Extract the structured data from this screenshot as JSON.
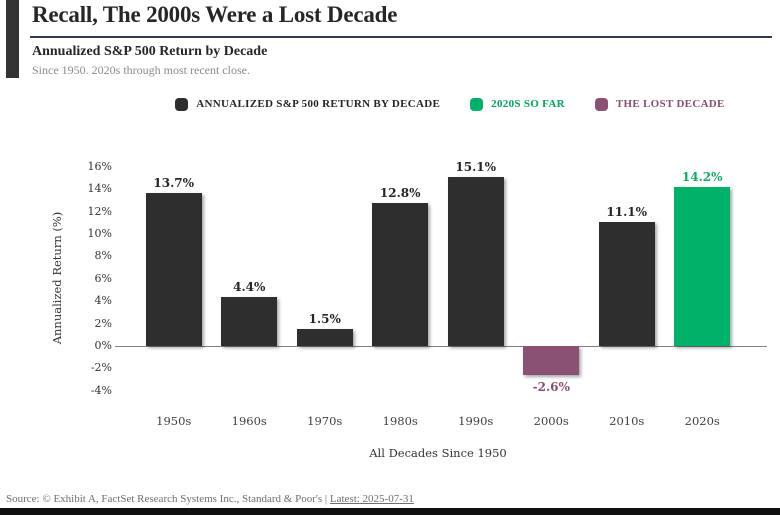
{
  "header": {
    "title": "Recall, The 2000s Were a Lost Decade",
    "subtitle": "Annualized S&P 500 Return by Decade",
    "tagline": "Since 1950. 2020s through most recent close."
  },
  "legend": [
    {
      "label": "ANNUALIZED S&P 500 RETURN BY DECADE",
      "marker_color": "#2e2e2e",
      "text_color": "#262626"
    },
    {
      "label": "2020S SO FAR",
      "marker_color": "#00b169",
      "text_color": "#00a35f"
    },
    {
      "label": "THE LOST DECADE",
      "marker_color": "#8b5173",
      "text_color": "#8a4d6f"
    }
  ],
  "chart_data": {
    "type": "bar",
    "categories": [
      "1950s",
      "1960s",
      "1970s",
      "1980s",
      "1990s",
      "2000s",
      "2010s",
      "2020s"
    ],
    "values": [
      13.7,
      4.4,
      1.5,
      12.8,
      15.1,
      -2.6,
      11.1,
      14.2
    ],
    "value_labels": [
      "13.7%",
      "4.4%",
      "1.5%",
      "12.8%",
      "15.1%",
      "-2.6%",
      "11.1%",
      "14.2%"
    ],
    "bar_colors": [
      "#2e2e2e",
      "#2e2e2e",
      "#2e2e2e",
      "#2e2e2e",
      "#2e2e2e",
      "#8b5173",
      "#2e2e2e",
      "#00b169"
    ],
    "label_colors": [
      "#262626",
      "#262626",
      "#262626",
      "#262626",
      "#262626",
      "#8a4d6f",
      "#262626",
      "#0fae62"
    ],
    "xlabel": "All Decades Since 1950",
    "ylabel": "Annualized Return (%)",
    "ylim": [
      -4,
      16
    ],
    "yticks": [
      {
        "value": 16,
        "label": "16%"
      },
      {
        "value": 14,
        "label": "14%"
      },
      {
        "value": 12,
        "label": "12%"
      },
      {
        "value": 10,
        "label": "10%"
      },
      {
        "value": 8,
        "label": "8%"
      },
      {
        "value": 6,
        "label": "6%"
      },
      {
        "value": 4,
        "label": "4%"
      },
      {
        "value": 2,
        "label": "2%"
      },
      {
        "value": 0,
        "label": "0%"
      },
      {
        "value": -2,
        "label": "-2%"
      },
      {
        "value": -4,
        "label": "-4%"
      }
    ],
    "grid": false,
    "legend_position": "top-center"
  },
  "footer": {
    "source_text": "Source: © Exhibit A, FactSet Research Systems Inc., Standard & Poor's | ",
    "link_text": "Latest: 2025-07-31"
  }
}
